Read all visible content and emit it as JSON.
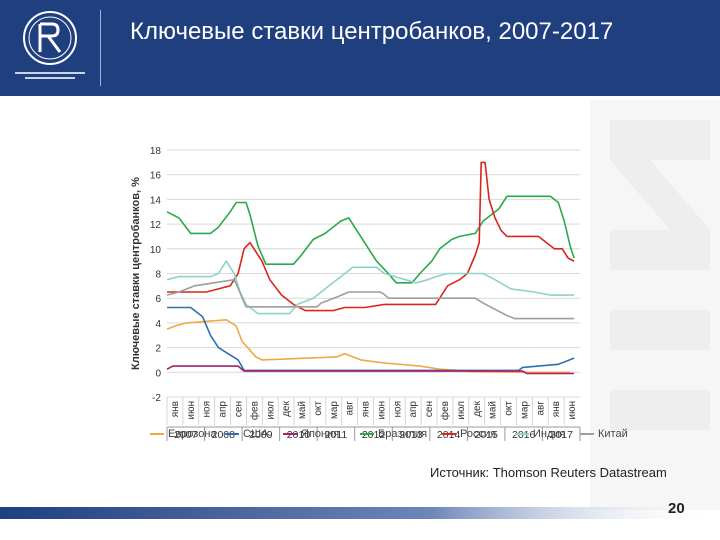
{
  "header": {
    "title": "Ключевые ставки центробанков, 2007-2017"
  },
  "footer": {
    "source": "Источник: Thomson Reuters Datastream",
    "page_number": "20"
  },
  "colors": {
    "header_bg": "#1f3f7f",
    "grid": "#d9d9d9"
  },
  "chart_data": {
    "type": "line",
    "ylabel": "Ключевые ставки центробанков, %",
    "xlabel": "",
    "ylim": [
      -2,
      18
    ],
    "yticks": [
      "18",
      "16",
      "14",
      "12",
      "10",
      "8",
      "6",
      "4",
      "2",
      "0",
      "-2"
    ],
    "grid": "horizontal",
    "legend_position": "bottom",
    "month_ticks": [
      "янв",
      "июн",
      "ноя",
      "апр",
      "сен",
      "фев",
      "июл",
      "дек",
      "май",
      "окт",
      "мар",
      "авг",
      "янв",
      "июн",
      "ноя",
      "апр",
      "сен",
      "фев",
      "июл",
      "дек",
      "май",
      "окт",
      "мар",
      "авг",
      "янв",
      "июн"
    ],
    "years": [
      "2007",
      "2008",
      "2009",
      "2010",
      "2011",
      "2012",
      "2013",
      "2014",
      "2015",
      "2016",
      "2017"
    ],
    "series": [
      {
        "name": "Еврозона",
        "color": "#f0a845",
        "points": [
          [
            2007.0,
            3.5
          ],
          [
            2007.25,
            3.8
          ],
          [
            2007.5,
            4.0
          ],
          [
            2008.5,
            4.25
          ],
          [
            2008.75,
            3.75
          ],
          [
            2008.9,
            2.5
          ],
          [
            2009.25,
            1.25
          ],
          [
            2009.4,
            1.0
          ],
          [
            2011.3,
            1.25
          ],
          [
            2011.5,
            1.5
          ],
          [
            2011.9,
            1.0
          ],
          [
            2012.5,
            0.75
          ],
          [
            2013.4,
            0.5
          ],
          [
            2013.9,
            0.25
          ],
          [
            2014.4,
            0.15
          ],
          [
            2014.7,
            0.05
          ],
          [
            2016.2,
            0.0
          ],
          [
            2017.2,
            0.0
          ]
        ]
      },
      {
        "name": "США",
        "color": "#2f6fb2",
        "points": [
          [
            2007.0,
            5.25
          ],
          [
            2007.6,
            5.25
          ],
          [
            2007.9,
            4.5
          ],
          [
            2008.1,
            3.0
          ],
          [
            2008.3,
            2.0
          ],
          [
            2008.8,
            1.0
          ],
          [
            2008.95,
            0.15
          ],
          [
            2015.9,
            0.15
          ],
          [
            2016.0,
            0.4
          ],
          [
            2016.9,
            0.65
          ],
          [
            2017.1,
            0.9
          ],
          [
            2017.3,
            1.15
          ]
        ]
      },
      {
        "name": "Япония",
        "color": "#a6226e",
        "points": [
          [
            2007.0,
            0.25
          ],
          [
            2007.15,
            0.5
          ],
          [
            2008.8,
            0.5
          ],
          [
            2008.95,
            0.1
          ],
          [
            2016.0,
            0.1
          ],
          [
            2016.1,
            -0.1
          ],
          [
            2017.3,
            -0.1
          ]
        ]
      },
      {
        "name": "Бразилия",
        "color": "#2aa84a",
        "points": [
          [
            2007.0,
            13.0
          ],
          [
            2007.3,
            12.5
          ],
          [
            2007.6,
            11.25
          ],
          [
            2008.1,
            11.25
          ],
          [
            2008.3,
            11.75
          ],
          [
            2008.6,
            13.0
          ],
          [
            2008.75,
            13.75
          ],
          [
            2009.0,
            13.75
          ],
          [
            2009.1,
            12.75
          ],
          [
            2009.3,
            10.25
          ],
          [
            2009.5,
            8.75
          ],
          [
            2010.2,
            8.75
          ],
          [
            2010.4,
            9.5
          ],
          [
            2010.7,
            10.75
          ],
          [
            2011.0,
            11.25
          ],
          [
            2011.4,
            12.25
          ],
          [
            2011.6,
            12.5
          ],
          [
            2011.8,
            11.5
          ],
          [
            2012.0,
            10.5
          ],
          [
            2012.3,
            9.0
          ],
          [
            2012.6,
            8.0
          ],
          [
            2012.8,
            7.25
          ],
          [
            2013.2,
            7.25
          ],
          [
            2013.4,
            8.0
          ],
          [
            2013.7,
            9.0
          ],
          [
            2013.9,
            10.0
          ],
          [
            2014.2,
            10.75
          ],
          [
            2014.4,
            11.0
          ],
          [
            2014.8,
            11.25
          ],
          [
            2015.0,
            12.25
          ],
          [
            2015.4,
            13.25
          ],
          [
            2015.6,
            14.25
          ],
          [
            2016.7,
            14.25
          ],
          [
            2016.9,
            13.75
          ],
          [
            2017.05,
            12.25
          ],
          [
            2017.2,
            10.25
          ],
          [
            2017.3,
            9.25
          ]
        ]
      },
      {
        "name": "Россия",
        "color": "#d9261c",
        "points": [
          [
            2007.0,
            6.5
          ],
          [
            2007.6,
            6.5
          ],
          [
            2008.0,
            6.5
          ],
          [
            2008.3,
            6.75
          ],
          [
            2008.6,
            7.0
          ],
          [
            2008.8,
            8.0
          ],
          [
            2008.95,
            10.0
          ],
          [
            2009.1,
            10.5
          ],
          [
            2009.4,
            9.0
          ],
          [
            2009.6,
            7.5
          ],
          [
            2009.9,
            6.25
          ],
          [
            2010.2,
            5.5
          ],
          [
            2010.5,
            5.0
          ],
          [
            2011.2,
            5.0
          ],
          [
            2011.5,
            5.25
          ],
          [
            2012.0,
            5.25
          ],
          [
            2012.5,
            5.5
          ],
          [
            2013.8,
            5.5
          ],
          [
            2014.1,
            7.0
          ],
          [
            2014.4,
            7.5
          ],
          [
            2014.6,
            8.0
          ],
          [
            2014.8,
            9.5
          ],
          [
            2014.9,
            10.5
          ],
          [
            2014.95,
            17.0
          ],
          [
            2015.05,
            17.0
          ],
          [
            2015.15,
            14.0
          ],
          [
            2015.3,
            12.5
          ],
          [
            2015.45,
            11.5
          ],
          [
            2015.6,
            11.0
          ],
          [
            2016.4,
            11.0
          ],
          [
            2016.6,
            10.5
          ],
          [
            2016.8,
            10.0
          ],
          [
            2017.0,
            10.0
          ],
          [
            2017.15,
            9.25
          ],
          [
            2017.3,
            9.0
          ]
        ]
      },
      {
        "name": "Индия",
        "color": "#8fd3c8",
        "points": [
          [
            2007.0,
            7.5
          ],
          [
            2007.3,
            7.75
          ],
          [
            2008.1,
            7.75
          ],
          [
            2008.3,
            8.0
          ],
          [
            2008.5,
            9.0
          ],
          [
            2008.7,
            8.0
          ],
          [
            2008.85,
            6.5
          ],
          [
            2009.0,
            5.5
          ],
          [
            2009.3,
            4.75
          ],
          [
            2010.1,
            4.75
          ],
          [
            2010.3,
            5.5
          ],
          [
            2010.7,
            6.0
          ],
          [
            2011.0,
            6.75
          ],
          [
            2011.4,
            7.75
          ],
          [
            2011.7,
            8.5
          ],
          [
            2012.3,
            8.5
          ],
          [
            2012.5,
            8.0
          ],
          [
            2013.3,
            7.25
          ],
          [
            2013.6,
            7.5
          ],
          [
            2013.8,
            7.75
          ],
          [
            2014.1,
            8.0
          ],
          [
            2015.0,
            8.0
          ],
          [
            2015.3,
            7.5
          ],
          [
            2015.7,
            6.75
          ],
          [
            2016.3,
            6.5
          ],
          [
            2016.7,
            6.25
          ],
          [
            2017.3,
            6.25
          ]
        ]
      },
      {
        "name": "Китай",
        "color": "#9e9e9e",
        "points": [
          [
            2007.0,
            6.25
          ],
          [
            2007.3,
            6.5
          ],
          [
            2007.7,
            7.0
          ],
          [
            2008.7,
            7.5
          ],
          [
            2008.8,
            6.8
          ],
          [
            2009.0,
            5.3
          ],
          [
            2010.8,
            5.3
          ],
          [
            2010.9,
            5.6
          ],
          [
            2011.3,
            6.1
          ],
          [
            2011.6,
            6.5
          ],
          [
            2012.4,
            6.5
          ],
          [
            2012.5,
            6.3
          ],
          [
            2012.6,
            6.0
          ],
          [
            2014.8,
            6.0
          ],
          [
            2015.0,
            5.6
          ],
          [
            2015.3,
            5.1
          ],
          [
            2015.6,
            4.6
          ],
          [
            2015.8,
            4.35
          ],
          [
            2017.3,
            4.35
          ]
        ]
      }
    ]
  }
}
